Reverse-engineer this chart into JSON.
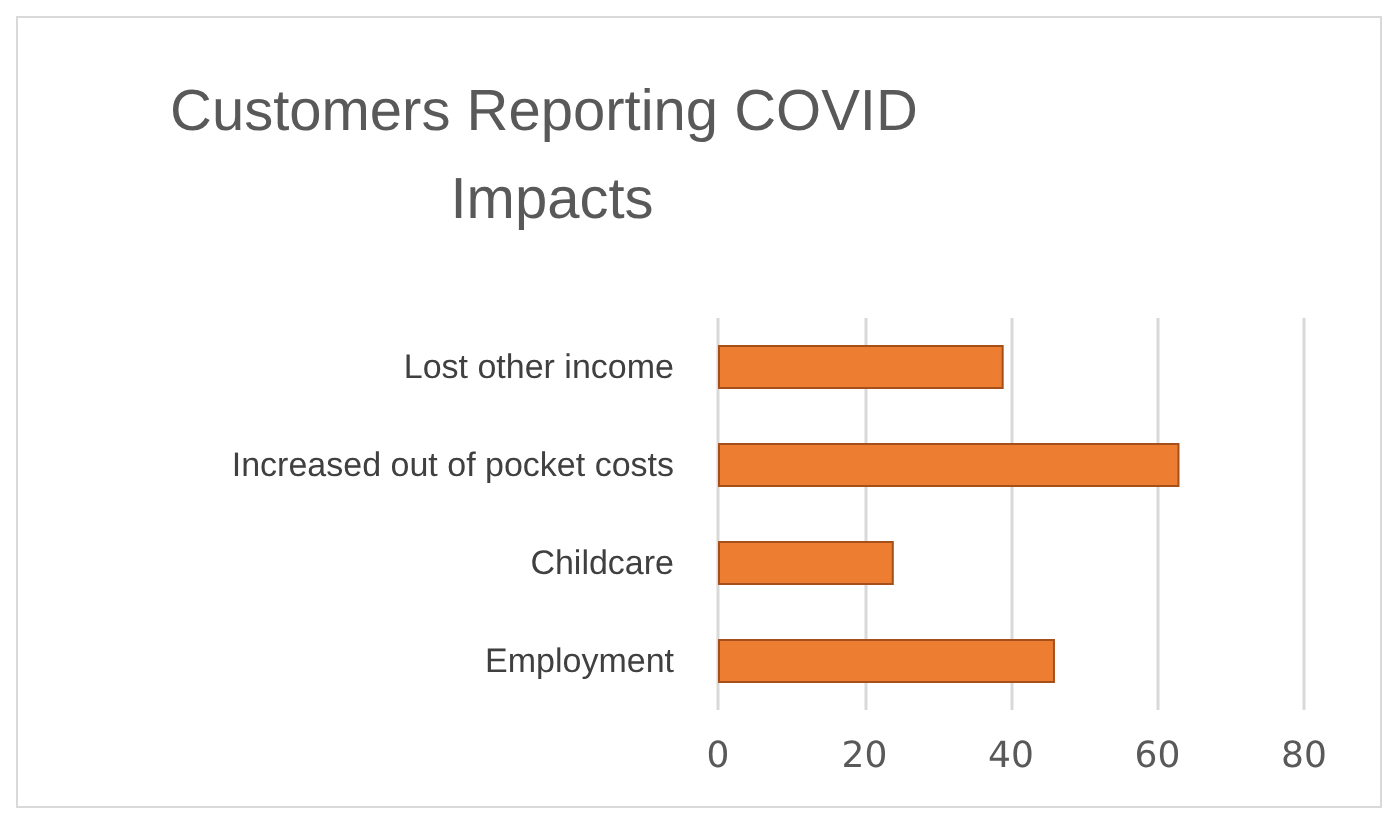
{
  "chart_data": {
    "type": "bar",
    "orientation": "horizontal",
    "title": "Customers Reporting COVID Impacts",
    "categories": [
      "Lost other income",
      "Increased out of pocket costs",
      "Childcare",
      "Employment"
    ],
    "values": [
      39,
      63,
      24,
      46
    ],
    "color": "#ed7d31",
    "xlim": [
      0,
      80
    ],
    "xticks": [
      0,
      20,
      40,
      60,
      80
    ],
    "grid": "x"
  }
}
